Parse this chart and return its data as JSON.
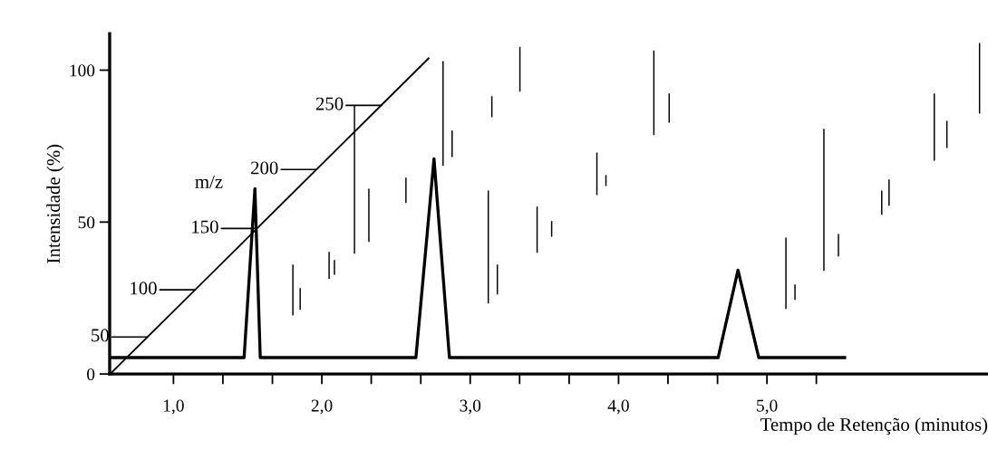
{
  "chart_data": {
    "type": "line",
    "xlabel": "Tempo de Retenção (minutos)",
    "ylabel": "Intensidade (%)",
    "xlim": [
      0.57,
      6.49
    ],
    "ylim": [
      0,
      112
    ],
    "xticks": [
      {
        "value": 1,
        "label": "1,0"
      },
      {
        "value": 1.333,
        "label": null
      },
      {
        "value": 1.667,
        "label": null
      },
      {
        "value": 2,
        "label": "2,0"
      },
      {
        "value": 2.333,
        "label": null
      },
      {
        "value": 2.667,
        "label": null
      },
      {
        "value": 3,
        "label": "3,0"
      },
      {
        "value": 3.333,
        "label": null
      },
      {
        "value": 3.667,
        "label": null
      },
      {
        "value": 4,
        "label": "4,0"
      },
      {
        "value": 4.333,
        "label": null
      },
      {
        "value": 4.667,
        "label": null
      },
      {
        "value": 5,
        "label": "5,0"
      },
      {
        "value": 5.333,
        "label": null
      }
    ],
    "yticks": [
      0,
      50,
      100
    ],
    "grid": false,
    "legend": false,
    "series": [
      {
        "color": "#000000",
        "x": [
          0.585,
          1.476,
          1.549,
          1.585,
          2.634,
          2.756,
          2.86,
          4.671,
          4.805,
          4.945,
          5.524
        ],
        "values": [
          5.4,
          5.4,
          61.0,
          5.4,
          5.4,
          70.8,
          5.4,
          5.4,
          34.2,
          5.4,
          5.4
        ]
      },
      {
        "type": "line",
        "color": "#000000",
        "x": [
          0.573,
          2.72
        ],
        "values": [
          0,
          103.9
        ]
      },
      {
        "type": "bar",
        "color": "#000000",
        "x": [
          1.805,
          1.854,
          2.049,
          2.085,
          2.22,
          2.317,
          2.567,
          2.817,
          2.878,
          3.122,
          3.146,
          3.183,
          3.335,
          3.451,
          3.549,
          3.854,
          3.915,
          4.238,
          4.341,
          5.128,
          5.189,
          5.384,
          5.482,
          5.774,
          5.823,
          6.128,
          6.213,
          6.433
        ],
        "base": [
          19.3,
          21.1,
          31.3,
          32.7,
          39.6,
          43.5,
          56.3,
          68.5,
          71.4,
          23.2,
          84.5,
          26.2,
          92.9,
          39.9,
          45.2,
          58.9,
          61.9,
          78.6,
          82.7,
          21.4,
          24.4,
          33.9,
          38.7,
          52.4,
          55.4,
          70.2,
          74.4,
          85.7
        ],
        "values": [
          16.7,
          7.2,
          8.9,
          4.8,
          48.8,
          17.5,
          8.3,
          34.5,
          8.7,
          37.2,
          6.9,
          9.8,
          14.8,
          15.2,
          5.1,
          14.0,
          3.6,
          27.9,
          9.6,
          23.5,
          5.1,
          46.8,
          7.4,
          8.0,
          8.6,
          22.1,
          8.9,
          23.2
        ]
      }
    ],
    "annotations": [
      "m/z",
      {
        "text": "50",
        "x": 0.823,
        "y": 12.2
      },
      {
        "text": "100",
        "x": 1.146,
        "y": 27.7
      },
      {
        "text": "150",
        "x": 1.561,
        "y": 47.9
      },
      {
        "text": "200",
        "x": 1.963,
        "y": 67.3
      },
      {
        "text": "250",
        "x": 2.402,
        "y": 88.4
      }
    ]
  }
}
